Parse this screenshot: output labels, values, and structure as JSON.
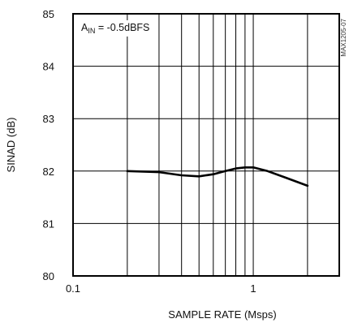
{
  "chart_data": {
    "type": "line",
    "title": "",
    "xlabel": "SAMPLE RATE (Msps)",
    "ylabel": "SINAD (dB)",
    "x_scale": "log",
    "xlim": [
      0.1,
      3.0
    ],
    "ylim": [
      80,
      85
    ],
    "x_tick_labels": [
      "0.1",
      "1"
    ],
    "y_tick_labels": [
      "80",
      "81",
      "82",
      "83",
      "84",
      "85"
    ],
    "grid": true,
    "annotation": {
      "main": "A",
      "subscript": "IN",
      "rest": " = -0.5dBFS"
    },
    "figure_code": "MAX1205-07",
    "series": [
      {
        "x": [
          0.2,
          0.3,
          0.4,
          0.5,
          0.6,
          0.7,
          0.8,
          0.9,
          1.0,
          1.2,
          1.5,
          2.0
        ],
        "y": [
          82.0,
          81.98,
          81.92,
          81.9,
          81.94,
          82.0,
          82.05,
          82.07,
          82.07,
          82.0,
          81.88,
          81.72
        ]
      }
    ]
  }
}
